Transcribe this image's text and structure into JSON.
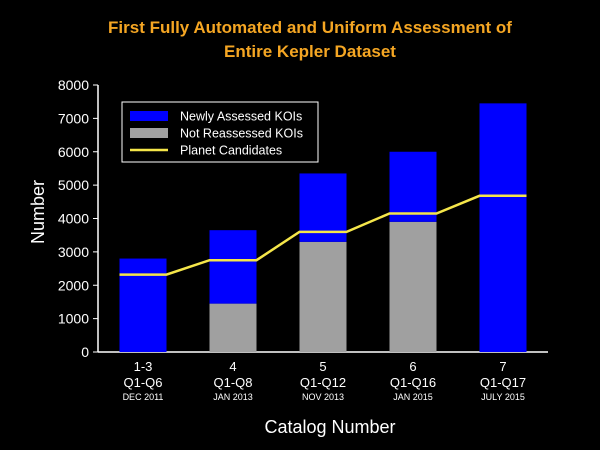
{
  "chart_data": {
    "type": "bar",
    "title_lines": [
      "First Fully Automated and Uniform Assessment of",
      "Entire Kepler Dataset"
    ],
    "xlabel": "Catalog Number",
    "ylabel": "Number",
    "ylim": [
      0,
      8000
    ],
    "yticks": [
      0,
      1000,
      2000,
      3000,
      4000,
      5000,
      6000,
      7000,
      8000
    ],
    "grid": false,
    "legend_placement": "top-left",
    "categories": [
      {
        "line1": "1-3",
        "line2": "Q1-Q6",
        "line3": "DEC 2011"
      },
      {
        "line1": "4",
        "line2": "Q1-Q8",
        "line3": "JAN 2013"
      },
      {
        "line1": "5",
        "line2": "Q1-Q12",
        "line3": "NOV 2013"
      },
      {
        "line1": "6",
        "line2": "Q1-Q16",
        "line3": "JAN 2015"
      },
      {
        "line1": "7",
        "line2": "Q1-Q17",
        "line3": "JULY 2015"
      }
    ],
    "stacked": true,
    "series": [
      {
        "name": "Not Reassessed KOIs",
        "kind": "bar",
        "color": "#a0a0a0",
        "values": [
          0,
          1450,
          3300,
          3900,
          0
        ]
      },
      {
        "name": "Newly Assessed KOIs",
        "kind": "bar",
        "color": "#0000ff",
        "values": [
          2800,
          2200,
          2050,
          2100,
          7450
        ]
      },
      {
        "name": "Planet Candidates",
        "kind": "line",
        "color": "#f5e64a",
        "values": [
          2320,
          2750,
          3600,
          4150,
          4680
        ]
      }
    ],
    "legend_order": [
      "Newly Assessed KOIs",
      "Not Reassessed KOIs",
      "Planet Candidates"
    ]
  }
}
